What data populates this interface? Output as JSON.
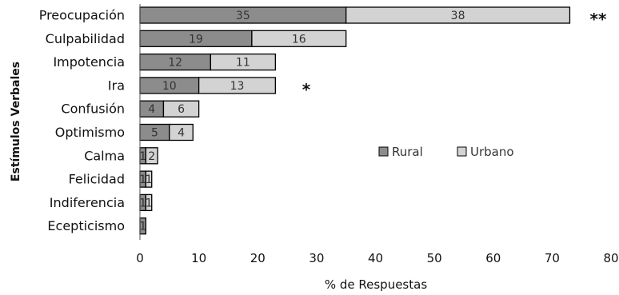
{
  "chart_data": {
    "type": "bar",
    "orientation": "horizontal",
    "stacked": true,
    "categories": [
      "Preocupación",
      "Culpabilidad",
      "Impotencia",
      "Ira",
      "Confusión",
      "Optimismo",
      "Calma",
      "Felicidad",
      "Indiferencia",
      "Ecepticismo"
    ],
    "series": [
      {
        "name": "Rural",
        "values": [
          35,
          19,
          12,
          10,
          4,
          5,
          1,
          1,
          1,
          1
        ],
        "color": "#8c8c8c"
      },
      {
        "name": "Urbano",
        "values": [
          38,
          16,
          11,
          13,
          6,
          4,
          2,
          1,
          1,
          0
        ],
        "color": "#d3d3d3"
      }
    ],
    "bar_labels": {
      "Rural": [
        "35",
        "19",
        "12",
        "10",
        "4",
        "5",
        "1",
        "1",
        "1",
        "1"
      ],
      "Urbano": [
        "38",
        "16",
        "11",
        "13",
        "6",
        "4",
        "2",
        "1",
        "1",
        ""
      ]
    },
    "xlabel": "% de Respuestas",
    "ylabel": "Estímulos Verbales",
    "xlim": [
      0,
      80
    ],
    "xticks": [
      0,
      10,
      20,
      30,
      40,
      50,
      60,
      70,
      80
    ],
    "grid": false,
    "legend_position": "center-right",
    "annotations": [
      {
        "category": "Preocupación",
        "text": "**"
      },
      {
        "category": "Ira",
        "text": "*"
      }
    ]
  }
}
